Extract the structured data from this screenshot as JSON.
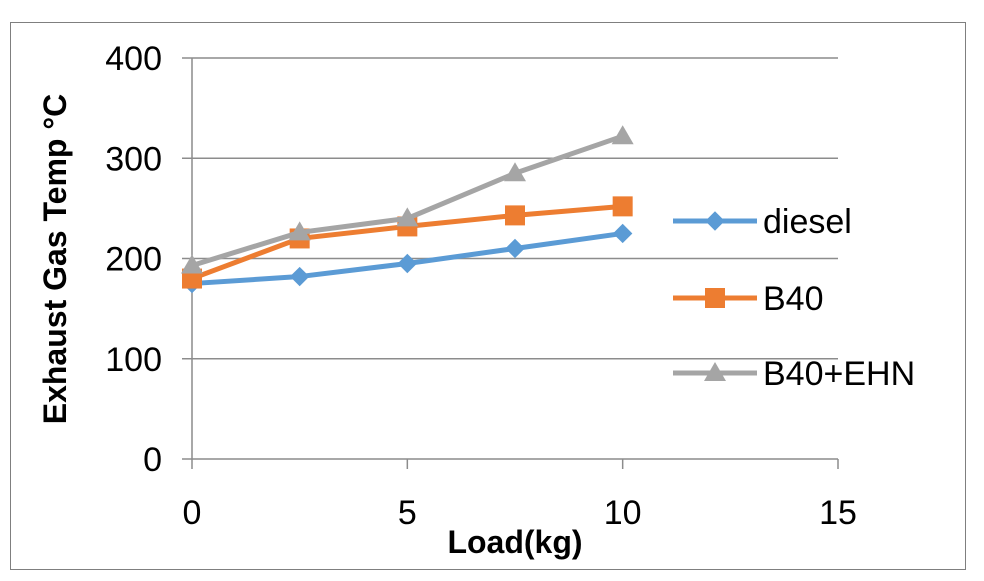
{
  "chart_data": {
    "type": "line",
    "title": "",
    "xlabel": "Load(kg)",
    "ylabel": "Exhaust Gas Temp °C",
    "xlim": [
      0,
      15
    ],
    "ylim": [
      0,
      400
    ],
    "x_ticks": [
      "0",
      "5",
      "10",
      "15"
    ],
    "y_ticks": [
      "0",
      "100",
      "200",
      "300",
      "400"
    ],
    "grid": "horizontal",
    "legend_position": "right",
    "x": [
      0,
      2.5,
      5,
      7.5,
      10
    ],
    "series": [
      {
        "name": "diesel",
        "marker": "diamond",
        "color": "#5b9bd5",
        "values": [
          175,
          182,
          195,
          210,
          225
        ]
      },
      {
        "name": "B40",
        "marker": "square",
        "color": "#ed7d31",
        "values": [
          180,
          220,
          232,
          243,
          252
        ]
      },
      {
        "name": "B40+EHN",
        "marker": "triangle",
        "color": "#a5a5a5",
        "values": [
          193,
          226,
          240,
          285,
          322
        ]
      }
    ]
  }
}
